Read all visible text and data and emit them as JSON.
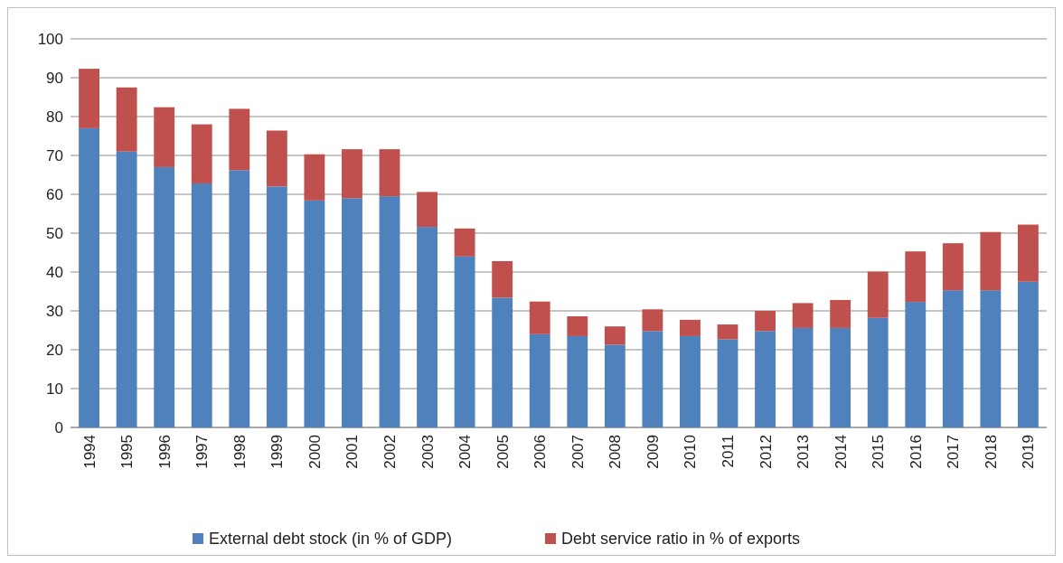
{
  "chart_data": {
    "type": "bar",
    "stacked": true,
    "categories": [
      "1994",
      "1995",
      "1996",
      "1997",
      "1998",
      "1999",
      "2000",
      "2001",
      "2002",
      "2003",
      "2004",
      "2005",
      "2006",
      "2007",
      "2008",
      "2009",
      "2010",
      "2011",
      "2012",
      "2013",
      "2014",
      "2015",
      "2016",
      "2017",
      "2018",
      "2019"
    ],
    "series": [
      {
        "name": "External debt stock (in % of GDP)",
        "color": "#4f81bd",
        "values": [
          77,
          71,
          67,
          62.8,
          66.2,
          62,
          58.4,
          59,
          59.5,
          51.6,
          44,
          33.4,
          24,
          23.5,
          21.3,
          24.8,
          23.5,
          22.7,
          24.8,
          25.6,
          25.6,
          28.2,
          32.3,
          35.3,
          35.3,
          37.5
        ]
      },
      {
        "name": "Debt service ratio in % of exports",
        "color": "#c0504d",
        "values": [
          15.3,
          16.5,
          15.4,
          15.2,
          15.8,
          14.4,
          11.9,
          12.6,
          12.1,
          9,
          7.2,
          9.4,
          8.4,
          5.1,
          4.7,
          5.6,
          4.2,
          3.8,
          5.2,
          6.4,
          7.2,
          11.9,
          13,
          12.1,
          15,
          14.7
        ]
      }
    ],
    "ylim": [
      0,
      100
    ],
    "yticks": [
      0,
      10,
      20,
      30,
      40,
      50,
      60,
      70,
      80,
      90,
      100
    ],
    "grid": "y",
    "legend": "bottom"
  }
}
